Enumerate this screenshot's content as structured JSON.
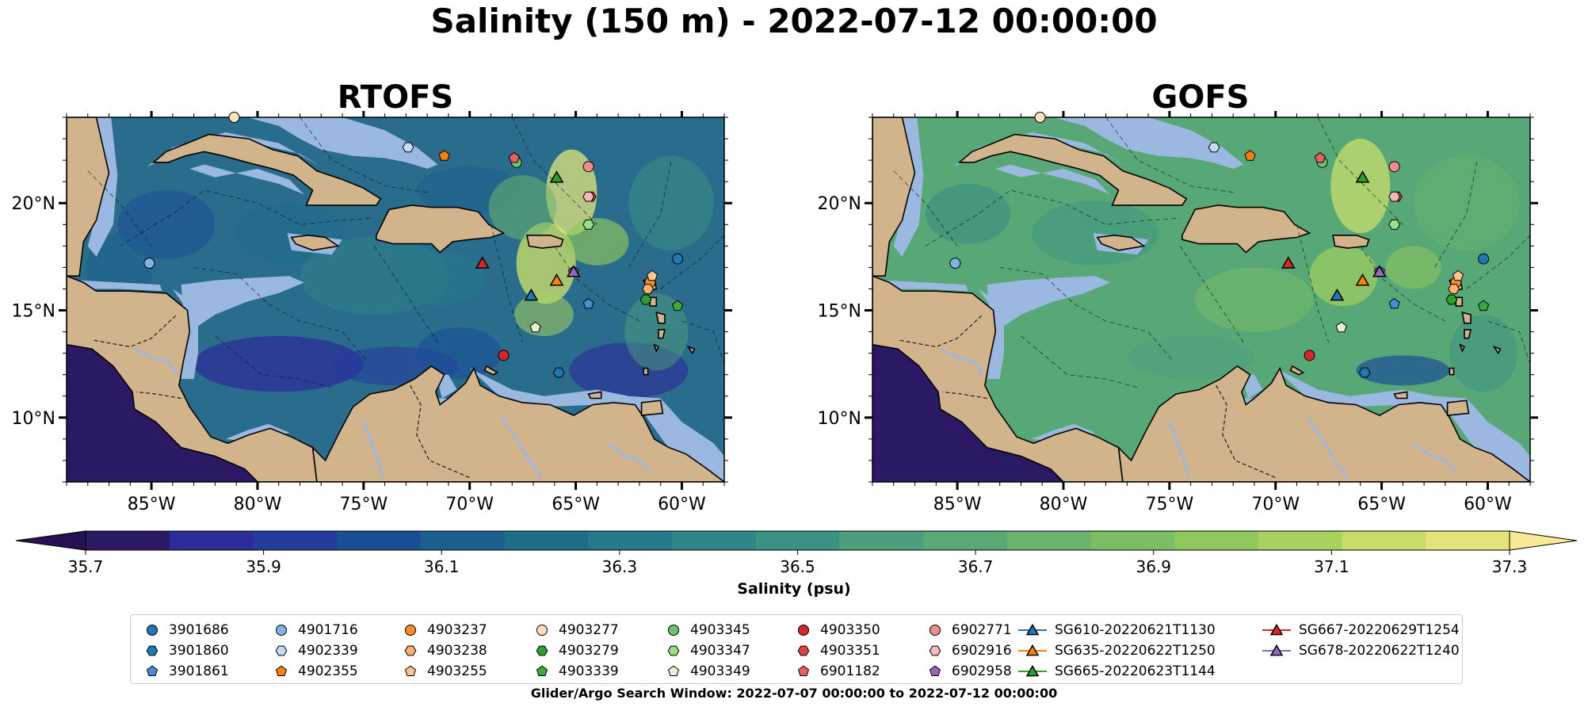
{
  "figure": {
    "suptitle": "Salinity (150 m) - 2022-07-12 00:00:00",
    "search_window": "Glider/Argo Search Window: 2022-07-07 00:00:00 to 2022-07-12 00:00:00"
  },
  "panels": [
    {
      "title": "RTOFS",
      "lat_ticks": [
        "20°N",
        "15°N",
        "10°N"
      ],
      "lon_ticks": [
        "85°W",
        "80°W",
        "75°W",
        "70°W",
        "65°W",
        "60°W"
      ]
    },
    {
      "title": "GOFS",
      "lat_ticks": [
        "20°N",
        "15°N",
        "10°N"
      ],
      "lon_ticks": [
        "85°W",
        "80°W",
        "75°W",
        "70°W",
        "65°W",
        "60°W"
      ]
    }
  ],
  "map_extent": {
    "lon": [
      -89,
      -58
    ],
    "lat": [
      7,
      24
    ]
  },
  "colorbar": {
    "label": "Salinity (psu)",
    "tick_labels": [
      "35.7",
      "35.9",
      "36.1",
      "36.3",
      "36.5",
      "36.7",
      "36.9",
      "37.1",
      "37.3"
    ],
    "colors": [
      "#2b1a63",
      "#2d2a9a",
      "#243c9c",
      "#1a4f96",
      "#1a5f8e",
      "#1e6e8a",
      "#24798a",
      "#2e8686",
      "#3a9282",
      "#4c9e7c",
      "#5aa876",
      "#6ab46e",
      "#7cbe66",
      "#90c85e",
      "#a8d160",
      "#c8dc6c",
      "#e3e57c"
    ],
    "extend_low": "#241350",
    "extend_high": "#f7ea93"
  },
  "colors": {
    "land": "#d2b48c",
    "shallow": "#9ab8e0",
    "deep_pacific": "#2b1a63",
    "rtofs_ocean": "#2a6c8c",
    "gofs_ocean": "#58a877"
  },
  "legend": [
    {
      "label": "3901686",
      "marker": "circle",
      "color": "#1f77b4"
    },
    {
      "label": "3901860",
      "marker": "hexagon",
      "color": "#1f77b4"
    },
    {
      "label": "3901861",
      "marker": "pentagon",
      "color": "#4a8cd0"
    },
    {
      "label": "4901716",
      "marker": "circle",
      "color": "#7fb2e5"
    },
    {
      "label": "4902339",
      "marker": "hexagon",
      "color": "#c5dcf2"
    },
    {
      "label": "4902355",
      "marker": "pentagon",
      "color": "#ff7f0e"
    },
    {
      "label": "4903237",
      "marker": "circle",
      "color": "#ff8c2a"
    },
    {
      "label": "4903238",
      "marker": "hexagon",
      "color": "#ffb070"
    },
    {
      "label": "4903255",
      "marker": "pentagon",
      "color": "#ffc490"
    },
    {
      "label": "4903277",
      "marker": "circle",
      "color": "#ffe0c0"
    },
    {
      "label": "4903279",
      "marker": "hexagon",
      "color": "#2ca02c"
    },
    {
      "label": "4903339",
      "marker": "pentagon",
      "color": "#3caa3c"
    },
    {
      "label": "4903345",
      "marker": "circle",
      "color": "#6cc56c"
    },
    {
      "label": "4903347",
      "marker": "hexagon",
      "color": "#98df8a"
    },
    {
      "label": "4903349",
      "marker": "pentagon",
      "color": "#e0f5d8"
    },
    {
      "label": "4903350",
      "marker": "circle",
      "color": "#d62728"
    },
    {
      "label": "4903351",
      "marker": "hexagon",
      "color": "#e04040"
    },
    {
      "label": "6901182",
      "marker": "pentagon",
      "color": "#e86060"
    },
    {
      "label": "6902771",
      "marker": "circle",
      "color": "#f08c8c"
    },
    {
      "label": "6902916",
      "marker": "hexagon",
      "color": "#f5b8b8"
    },
    {
      "label": "6902958",
      "marker": "pentagon",
      "color": "#9467bd"
    },
    {
      "label": "SG610-20220621T1130",
      "marker": "triangle-line",
      "color": "#1f77b4"
    },
    {
      "label": "SG635-20220622T1250",
      "marker": "triangle-line",
      "color": "#ff7f0e"
    },
    {
      "label": "SG665-20220623T1144",
      "marker": "triangle-line",
      "color": "#2ca02c"
    },
    {
      "label": "SG667-20220629T1254",
      "marker": "triangle-line",
      "color": "#d62728"
    },
    {
      "label": "SG678-20220622T1240",
      "marker": "triangle-line",
      "color": "#9467bd"
    }
  ],
  "markers": [
    {
      "id": "3901686",
      "lon": -60.2,
      "lat": 17.4
    },
    {
      "id": "3901860",
      "lon": -65.8,
      "lat": 12.1
    },
    {
      "id": "3901861",
      "lon": -64.4,
      "lat": 15.3
    },
    {
      "id": "4901716",
      "lon": -85.1,
      "lat": 17.2
    },
    {
      "id": "4902339",
      "lon": -72.9,
      "lat": 22.6
    },
    {
      "id": "4902355",
      "lon": -71.2,
      "lat": 22.2
    },
    {
      "id": "4903237",
      "lon": -61.5,
      "lat": 16.3
    },
    {
      "id": "4903238",
      "lon": -61.6,
      "lat": 16.0
    },
    {
      "id": "4903255",
      "lon": -61.4,
      "lat": 16.6
    },
    {
      "id": "4903277",
      "lon": -81.1,
      "lat": 24.0
    },
    {
      "id": "4903279",
      "lon": -61.7,
      "lat": 15.5
    },
    {
      "id": "4903339",
      "lon": -60.2,
      "lat": 15.2
    },
    {
      "id": "4903345",
      "lon": -67.8,
      "lat": 21.9
    },
    {
      "id": "4903347",
      "lon": -64.4,
      "lat": 19.0
    },
    {
      "id": "4903349",
      "lon": -66.9,
      "lat": 14.2
    },
    {
      "id": "4903350",
      "lon": -68.4,
      "lat": 12.9
    },
    {
      "id": "4903351",
      "lon": -64.3,
      "lat": 20.3
    },
    {
      "id": "6901182",
      "lon": -67.9,
      "lat": 22.1
    },
    {
      "id": "6902771",
      "lon": -64.4,
      "lat": 21.7
    },
    {
      "id": "6902916",
      "lon": -64.4,
      "lat": 20.3
    },
    {
      "id": "6902958",
      "lon": -65.1,
      "lat": 16.8
    },
    {
      "id": "SG610-20220621T1130",
      "lon": -67.1,
      "lat": 15.7
    },
    {
      "id": "SG635-20220622T1250",
      "lon": -65.9,
      "lat": 16.4
    },
    {
      "id": "SG665-20220623T1144",
      "lon": -65.9,
      "lat": 21.2
    },
    {
      "id": "SG667-20220629T1254",
      "lon": -69.4,
      "lat": 17.2
    },
    {
      "id": "SG678-20220622T1240",
      "lon": -65.1,
      "lat": 16.8
    }
  ]
}
